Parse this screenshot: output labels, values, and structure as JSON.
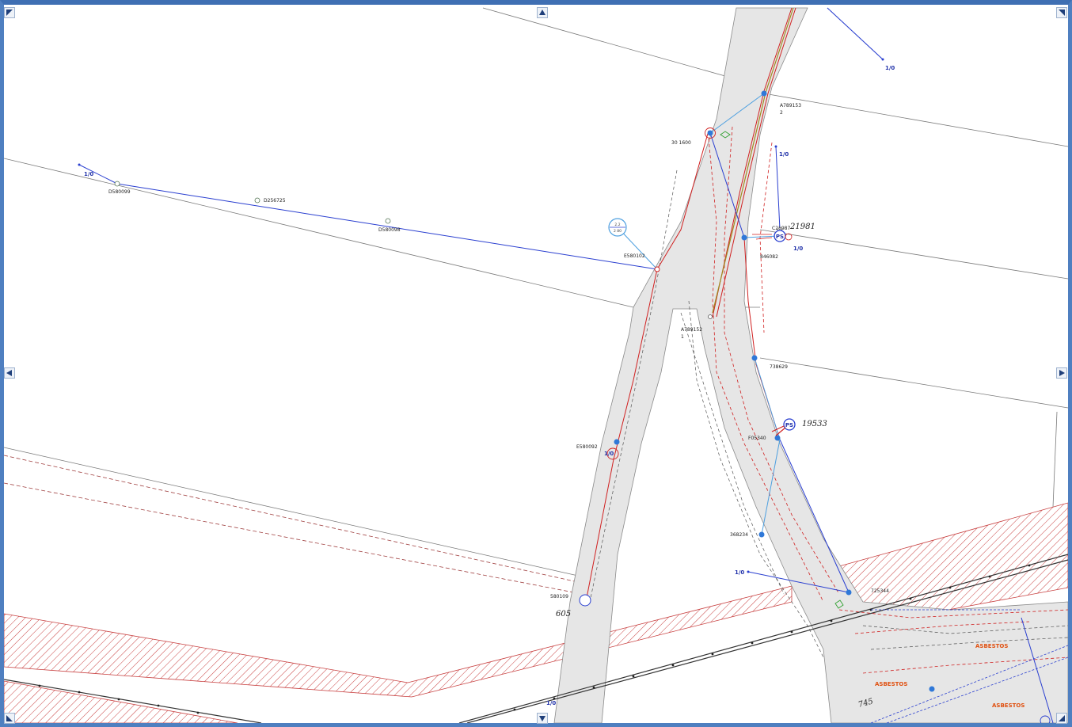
{
  "nav": {
    "up": "pan-up",
    "down": "pan-down",
    "left": "pan-left",
    "right": "pan-right",
    "corner_tl": "zoom-extent",
    "corner_tr": "maximize"
  },
  "labels": {
    "d580099": "D580099",
    "d256725": "D256725",
    "d580098": "D580098",
    "e580102": "E580102",
    "a789153": "A789153",
    "a789153_sub": "2",
    "n301600": "30 1600",
    "n846082": "846082",
    "a789152": "A789152",
    "a789152_sub": "1",
    "n738629": "738629",
    "f05340": "F05340",
    "e580092": "E580092",
    "n368234": "368234",
    "n580109": "580109",
    "n605": "605",
    "n725344": "725344",
    "n745": "745",
    "n21981": "21981",
    "n19533": "19533",
    "c21987": "C21987",
    "one_zero_1": "1/0",
    "one_zero_2": "1/0",
    "one_zero_3": "1/0",
    "one_zero_4": "1/0",
    "one_zero_5": "1/0",
    "one_zero_6": "1/0",
    "one_zero_7": "1/0",
    "ps_1": "PS",
    "ps_2": "PS",
    "transformer_top": "2.2",
    "transformer_bottom": "2 80",
    "asbestos_1": "ASBESTOS",
    "asbestos_2": "ASBESTOS",
    "asbestos_3": "ASBESTOS"
  },
  "colors": {
    "frame": "#4f7fc0",
    "road_fill": "#e6e6e6",
    "parcel_line": "#707070",
    "network_blue": "#2a3fd0",
    "light_blue": "#4ea0e0",
    "red_line": "#d02020",
    "hatch": "#c84040",
    "node_blue": "#2f78d8"
  }
}
